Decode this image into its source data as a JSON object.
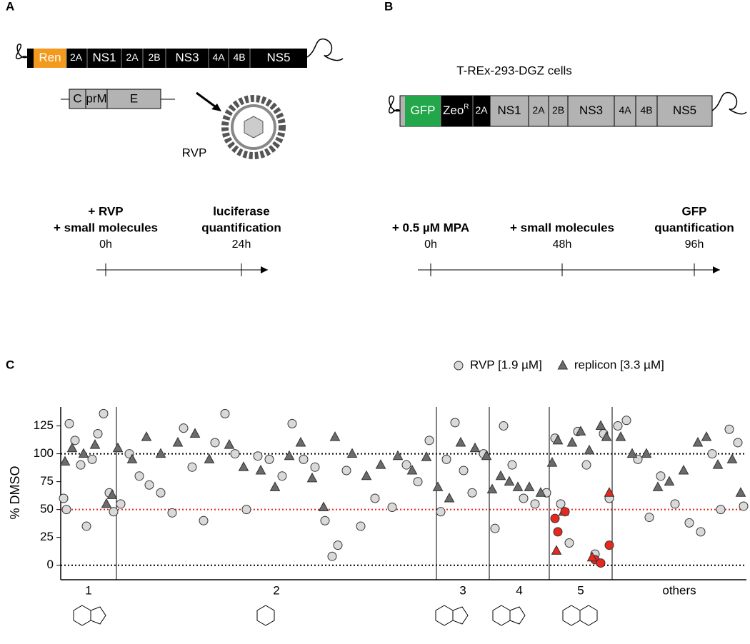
{
  "panel_a": {
    "label": "A",
    "genome": [
      {
        "label": "Ren",
        "x0": 47,
        "x1": 93,
        "fill": "#f39a1e"
      },
      {
        "label": "2A",
        "x0": 93,
        "x1": 120,
        "fill": "#000"
      },
      {
        "label": "NS1",
        "x0": 122,
        "x1": 170,
        "fill": "#000"
      },
      {
        "label": "2A",
        "x0": 170,
        "x1": 200,
        "fill": "#000"
      },
      {
        "label": "2B",
        "x0": 200,
        "x1": 232,
        "fill": "#000"
      },
      {
        "label": "NS3",
        "x0": 232,
        "x1": 292,
        "fill": "#000"
      },
      {
        "label": "4A",
        "x0": 292,
        "x1": 320,
        "fill": "#000"
      },
      {
        "label": "4B",
        "x0": 320,
        "x1": 350,
        "fill": "#000"
      },
      {
        "label": "NS5",
        "x0": 350,
        "x1": 430,
        "fill": "#000"
      }
    ],
    "structural": [
      {
        "label": "C",
        "x0": 97,
        "x1": 120
      },
      {
        "label": "prM",
        "x0": 120,
        "x1": 150
      },
      {
        "label": "E",
        "x0": 150,
        "x1": 225
      }
    ],
    "particle": "RVP",
    "timeline": [
      {
        "lines": [
          "+ RVP",
          "+ small molecules"
        ],
        "time": "0h"
      },
      {
        "lines": [
          "luciferase",
          "quantification"
        ],
        "time": "24h"
      }
    ]
  },
  "panel_b": {
    "label": "B",
    "cells": "T-REx-293-DGZ cells",
    "genome": [
      {
        "label": "GFP",
        "x0": 567,
        "x1": 617,
        "fill": "#22a84a"
      },
      {
        "label": "Zeo",
        "sup": "R",
        "x0": 617,
        "x1": 662,
        "fill": "#000"
      },
      {
        "label": "2A",
        "x0": 662,
        "x1": 686,
        "fill": "#000"
      },
      {
        "label": "NS1",
        "x0": 686,
        "x1": 740,
        "fill": "#b3b3b3"
      },
      {
        "label": "2A",
        "x0": 740,
        "x1": 768,
        "fill": "#b3b3b3"
      },
      {
        "label": "2B",
        "x0": 768,
        "x1": 795,
        "fill": "#b3b3b3"
      },
      {
        "label": "NS3",
        "x0": 795,
        "x1": 860,
        "fill": "#b3b3b3"
      },
      {
        "label": "4A",
        "x0": 860,
        "x1": 890,
        "fill": "#b3b3b3"
      },
      {
        "label": "4B",
        "x0": 890,
        "x1": 920,
        "fill": "#b3b3b3"
      },
      {
        "label": "NS5",
        "x0": 920,
        "x1": 997,
        "fill": "#b3b3b3"
      }
    ],
    "timeline": [
      {
        "lines": [
          "+ 0.5 µM MPA"
        ],
        "time": "0h"
      },
      {
        "lines": [
          "+ small molecules"
        ],
        "time": "48h"
      },
      {
        "lines": [
          "GFP",
          "quantification"
        ],
        "time": "96h"
      }
    ]
  },
  "chart_data": {
    "type": "scatter",
    "panel": "C",
    "ylabel": "% DMSO",
    "xlim": [
      0,
      480
    ],
    "ylim": [
      -13,
      142
    ],
    "yticks": [
      0,
      25,
      50,
      75,
      100,
      125
    ],
    "reference_lines": [
      {
        "value": 0,
        "color": "#000"
      },
      {
        "value": 50,
        "color": "#e8281e"
      },
      {
        "value": 100,
        "color": "#000"
      }
    ],
    "groups": [
      {
        "label": "1",
        "start": 0,
        "end": 39
      },
      {
        "label": "2",
        "start": 39,
        "end": 263
      },
      {
        "label": "3",
        "start": 263,
        "end": 300
      },
      {
        "label": "4",
        "start": 300,
        "end": 342
      },
      {
        "label": "5",
        "start": 342,
        "end": 386
      },
      {
        "label": "others",
        "start": 386,
        "end": 480
      }
    ],
    "series": [
      {
        "name": "RVP [1.9 µM]",
        "marker": "circle",
        "color": "#d9d9d9",
        "x": [
          2,
          4,
          6,
          10,
          14,
          18,
          22,
          26,
          30,
          34,
          37,
          42,
          48,
          55,
          62,
          70,
          78,
          86,
          92,
          100,
          108,
          115,
          122,
          130,
          138,
          146,
          155,
          162,
          170,
          178,
          185,
          190,
          194,
          200,
          210,
          220,
          232,
          242,
          250,
          258,
          266,
          270,
          276,
          282,
          288,
          296,
          304,
          310,
          316,
          324,
          332,
          340,
          346,
          350,
          356,
          362,
          368,
          374,
          380,
          384,
          390,
          396,
          404,
          412,
          420,
          430,
          440,
          448,
          456,
          462,
          468,
          474,
          478
        ],
        "values": [
          60,
          50,
          127,
          112,
          90,
          35,
          95,
          118,
          136,
          65,
          48,
          55,
          100,
          80,
          72,
          65,
          47,
          123,
          88,
          40,
          110,
          136,
          100,
          50,
          98,
          95,
          80,
          127,
          95,
          88,
          40,
          8,
          18,
          85,
          35,
          60,
          52,
          90,
          75,
          112,
          48,
          95,
          128,
          85,
          65,
          100,
          33,
          125,
          90,
          60,
          55,
          65,
          114,
          55,
          20,
          120,
          90,
          10,
          118,
          60,
          125,
          130,
          95,
          43,
          80,
          55,
          38,
          30,
          100,
          50,
          122,
          110,
          53
        ]
      },
      {
        "name": "replicon [3.3 µM]",
        "marker": "triangle",
        "color": "#6b6b6b",
        "x": [
          3,
          8,
          16,
          24,
          32,
          36,
          40,
          50,
          60,
          70,
          82,
          94,
          104,
          118,
          128,
          140,
          150,
          160,
          168,
          176,
          184,
          192,
          204,
          214,
          224,
          236,
          246,
          256,
          264,
          272,
          280,
          290,
          298,
          302,
          308,
          314,
          320,
          328,
          336,
          344,
          348,
          352,
          358,
          364,
          370,
          378,
          382,
          392,
          400,
          410,
          418,
          426,
          436,
          446,
          452,
          460,
          470,
          476
        ],
        "values": [
          93,
          105,
          100,
          108,
          55,
          63,
          105,
          95,
          115,
          100,
          110,
          118,
          95,
          108,
          88,
          85,
          70,
          98,
          110,
          78,
          52,
          115,
          100,
          80,
          90,
          98,
          85,
          97,
          70,
          60,
          110,
          105,
          98,
          68,
          80,
          75,
          70,
          70,
          65,
          92,
          112,
          48,
          110,
          120,
          103,
          125,
          115,
          115,
          100,
          100,
          70,
          75,
          85,
          110,
          115,
          90,
          95,
          65
        ]
      },
      {
        "marker": "circle",
        "color": "#e8281e",
        "x": [
          346,
          348,
          353,
          374,
          378,
          384
        ],
        "values": [
          42,
          30,
          48,
          5,
          2,
          18
        ]
      },
      {
        "marker": "triangle",
        "color": "#e8281e",
        "x": [
          347,
          372,
          384
        ],
        "values": [
          13,
          7,
          65
        ]
      }
    ]
  }
}
